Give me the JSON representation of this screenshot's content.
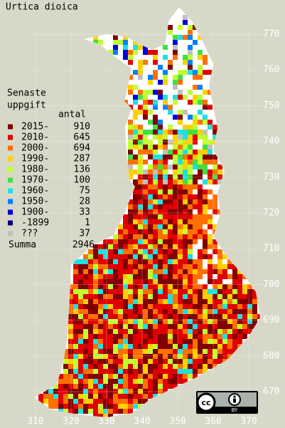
{
  "title": "Urtica dioica",
  "legend": {
    "title_line1": "Senaste",
    "title_line2": "uppgift",
    "count_header": "antal",
    "items": [
      {
        "label": "2015-",
        "count": 910,
        "color": "#800000"
      },
      {
        "label": "2010-",
        "count": 645,
        "color": "#e00000"
      },
      {
        "label": "2000-",
        "count": 694,
        "color": "#ff7000"
      },
      {
        "label": "1990-",
        "count": 287,
        "color": "#ffd000"
      },
      {
        "label": "1980-",
        "count": 136,
        "color": "#c0ff30"
      },
      {
        "label": "1970-",
        "count": 100,
        "color": "#40e040"
      },
      {
        "label": "1960-",
        "count": 75,
        "color": "#20e0e0"
      },
      {
        "label": "1950-",
        "count": 28,
        "color": "#0080ff"
      },
      {
        "label": "1900-",
        "count": 33,
        "color": "#0000e0"
      },
      {
        "label": "-1899",
        "count": 1,
        "color": "#000080"
      },
      {
        "label": "???",
        "count": 37,
        "color": "#c0c0c0"
      }
    ],
    "total_label": "Summa",
    "total": 2946
  },
  "x_axis": [
    310,
    320,
    330,
    340,
    350,
    360,
    370
  ],
  "y_axis": [
    670,
    680,
    690,
    700,
    710,
    720,
    730,
    740,
    750,
    760,
    770
  ],
  "badge": {
    "cc": "cc",
    "by": "BY"
  }
}
